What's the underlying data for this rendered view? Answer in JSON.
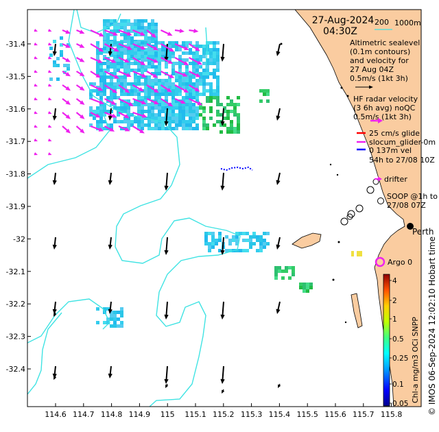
{
  "map": {
    "date_title": "27-Aug-2024",
    "time_title": "04:30Z",
    "lat_ticks": [
      "-31.4",
      "-31.5",
      "-31.6",
      "-31.7",
      "-31.8",
      "-31.9",
      "-32",
      "-32.1",
      "-32.2",
      "-32.3",
      "-32.4"
    ],
    "lon_ticks": [
      "114.6",
      "114.7",
      "114.8",
      "114.9",
      "115",
      "115.1",
      "115.2",
      "115.3",
      "115.4",
      "115.5",
      "115.6",
      "115.7",
      "115.8"
    ],
    "colors": {
      "land": "#FACCA0",
      "isobath": "#3FE3E3",
      "hf_radar_arrows": "#EE22EE",
      "altimetry_arrows": "#000000",
      "glide_track": "#FF0000",
      "glider_track": "#EE22EE",
      "glider_vel": "#0000FF",
      "argo": "#EE22EE"
    }
  },
  "legend": {
    "depth_200": "200",
    "depth_1000": "1000m",
    "altimetry_text": [
      "Altimetric sealevel",
      "(0.1m contours)",
      "and velocity for",
      "27 Aug 04Z",
      "0.5m/s (1kt 3h)"
    ],
    "hf_text": [
      "HF radar velocity",
      "(3 6h avg) noQC",
      "0.5m/s (1kt 3h)"
    ],
    "glide_label": "25 cm/s glide",
    "glider_label": "slocum_glider-0m",
    "glider_vel_label": "0 137m vel",
    "glider_time_label": "54h to 27/08 10Z",
    "drifter_label": "drifter",
    "soop_text": [
      "SOOP @1h to",
      "27/08 07Z"
    ],
    "city_label": "Perth",
    "argo_label": "Argo 0"
  },
  "colorbar": {
    "ticks": [
      "4",
      "2",
      "1",
      "0.5",
      "0.25",
      "0.1",
      "0.05"
    ],
    "label": "Chl-a mg/m3 OCi SNPP"
  },
  "credit": "© IMOS 06-Sep-2024 12:02:10 Hobart time"
}
